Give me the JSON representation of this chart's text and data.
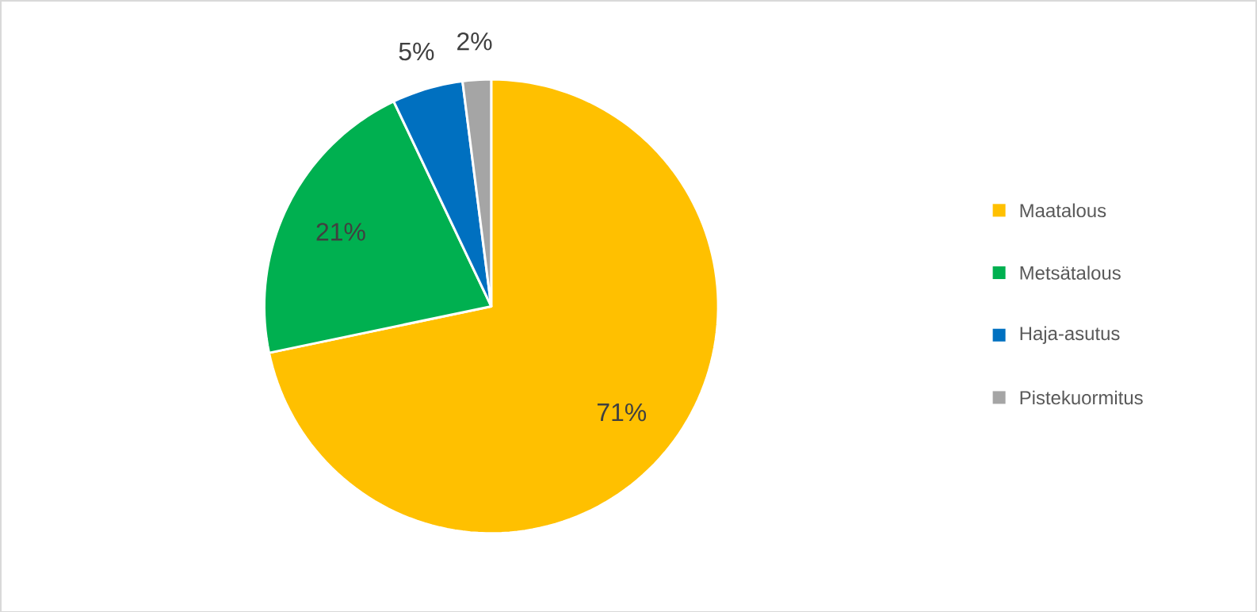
{
  "chart_data": {
    "type": "pie",
    "categories": [
      "Maatalous",
      "Metsätalous",
      "Haja-asutus",
      "Pistekuormitus"
    ],
    "values": [
      71,
      21,
      5,
      2
    ],
    "colors": [
      "#ffc000",
      "#00b050",
      "#0070c0",
      "#a5a5a5"
    ],
    "value_labels": [
      "71%",
      "21%",
      "5%",
      "2%"
    ],
    "legend": "right"
  }
}
